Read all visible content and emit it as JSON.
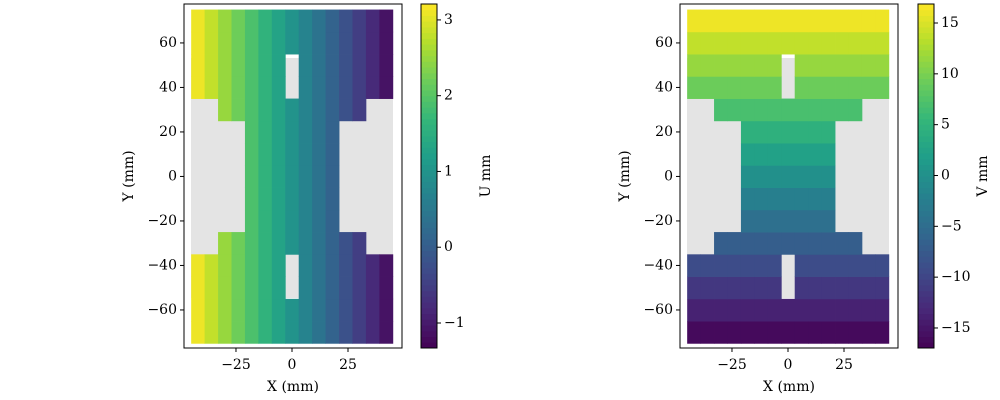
{
  "chart_data": [
    {
      "type": "field",
      "xlabel": "X (mm)",
      "ylabel": "Y (mm)",
      "colorbar_label": "U mm",
      "colormap": "viridis",
      "x": [
        -42,
        -36,
        -30,
        -24,
        -18,
        -12,
        -6,
        0,
        6,
        12,
        18,
        24,
        30,
        36,
        42
      ],
      "y": [
        -70,
        -60,
        -50,
        -40,
        -30,
        -20,
        -10,
        0,
        10,
        20,
        30,
        40,
        50,
        60,
        70
      ],
      "values": [
        [
          3.1,
          2.8,
          2.5,
          2.2,
          1.9,
          1.6,
          1.3,
          1.0,
          0.7,
          0.4,
          0.1,
          -0.2,
          -0.5,
          -0.8,
          -1.1
        ],
        [
          3.1,
          2.8,
          2.5,
          2.2,
          1.9,
          1.6,
          1.3,
          1.0,
          0.7,
          0.4,
          0.1,
          -0.2,
          -0.5,
          -0.8,
          -1.1
        ],
        [
          3.1,
          2.8,
          2.5,
          2.2,
          1.9,
          1.6,
          1.3,
          null,
          0.7,
          0.4,
          0.1,
          -0.2,
          -0.5,
          -0.8,
          -1.1
        ],
        [
          3.1,
          2.8,
          2.5,
          2.2,
          1.9,
          1.6,
          1.3,
          null,
          0.7,
          0.4,
          0.1,
          -0.2,
          -0.5,
          -0.8,
          -1.1
        ],
        [
          null,
          null,
          2.5,
          2.2,
          1.9,
          1.6,
          1.3,
          1.0,
          0.7,
          0.4,
          0.1,
          -0.2,
          -0.5,
          null,
          null
        ],
        [
          null,
          null,
          null,
          null,
          1.9,
          1.6,
          1.3,
          1.0,
          0.7,
          0.4,
          0.1,
          null,
          null,
          null,
          null
        ],
        [
          null,
          null,
          null,
          null,
          1.9,
          1.6,
          1.3,
          1.0,
          0.7,
          0.4,
          0.1,
          null,
          null,
          null,
          null
        ],
        [
          null,
          null,
          null,
          null,
          1.9,
          1.6,
          1.3,
          1.0,
          0.7,
          0.4,
          0.1,
          null,
          null,
          null,
          null
        ],
        [
          null,
          null,
          null,
          null,
          1.9,
          1.6,
          1.3,
          1.0,
          0.7,
          0.4,
          0.1,
          null,
          null,
          null,
          null
        ],
        [
          null,
          null,
          null,
          null,
          1.9,
          1.6,
          1.3,
          1.0,
          0.7,
          0.4,
          0.1,
          null,
          null,
          null,
          null
        ],
        [
          null,
          null,
          2.5,
          2.2,
          1.9,
          1.6,
          1.3,
          1.0,
          0.7,
          0.4,
          0.1,
          -0.2,
          -0.5,
          null,
          null
        ],
        [
          3.1,
          2.8,
          2.5,
          2.2,
          1.9,
          1.6,
          1.3,
          null,
          0.7,
          0.4,
          0.1,
          -0.2,
          -0.5,
          -0.8,
          -1.1
        ],
        [
          3.1,
          2.8,
          2.5,
          2.2,
          1.9,
          1.6,
          1.3,
          null,
          0.7,
          0.4,
          0.1,
          -0.2,
          -0.5,
          -0.8,
          -1.1
        ],
        [
          3.1,
          2.8,
          2.5,
          2.2,
          1.9,
          1.6,
          1.3,
          1.0,
          0.7,
          0.4,
          0.1,
          -0.2,
          -0.5,
          -0.8,
          -1.1
        ],
        [
          3.1,
          2.8,
          2.5,
          2.2,
          1.9,
          1.6,
          1.3,
          1.0,
          0.7,
          0.4,
          0.1,
          -0.2,
          -0.5,
          -0.8,
          -1.1
        ]
      ],
      "xlim": [
        -48.2,
        49.1
      ],
      "ylim": [
        -77.1,
        77.5
      ],
      "xticks": [
        {
          "value": -25,
          "label": "−25"
        },
        0,
        25
      ],
      "yticks": [
        {
          "value": -60,
          "label": "−60"
        },
        {
          "value": -40,
          "label": "−40"
        },
        {
          "value": -20,
          "label": "−20"
        },
        0,
        20,
        40,
        60
      ],
      "clim": [
        -1.33,
        3.21
      ],
      "cticks": [
        {
          "value": -1,
          "label": "−1"
        },
        0,
        1,
        2,
        3
      ]
    },
    {
      "type": "field",
      "xlabel": "X (mm)",
      "ylabel": "Y (mm)",
      "colorbar_label": "V mm",
      "colormap": "viridis",
      "x": [
        -42,
        -36,
        -30,
        -24,
        -18,
        -12,
        -6,
        0,
        6,
        12,
        18,
        24,
        30,
        36,
        42
      ],
      "y": [
        -70,
        -60,
        -50,
        -40,
        -30,
        -20,
        -10,
        0,
        10,
        20,
        30,
        40,
        50,
        60,
        70
      ],
      "values": [
        [
          -16.1,
          -16.1,
          -16.1,
          -16.1,
          -16.1,
          -16.1,
          -16.1,
          -16.1,
          -16.1,
          -16.1,
          -16.1,
          -16.1,
          -16.1,
          -16.1,
          -16.1
        ],
        [
          -13.8,
          -13.8,
          -13.8,
          -13.8,
          -13.8,
          -13.8,
          -13.8,
          -13.8,
          -13.8,
          -13.8,
          -13.8,
          -13.8,
          -13.8,
          -13.8,
          -13.8
        ],
        [
          -11.5,
          -11.5,
          -11.5,
          -11.5,
          -11.5,
          -11.5,
          -11.5,
          null,
          -11.5,
          -11.5,
          -11.5,
          -11.5,
          -11.5,
          -11.5,
          -11.5
        ],
        [
          -9.2,
          -9.2,
          -9.2,
          -9.2,
          -9.2,
          -9.2,
          -9.2,
          null,
          -9.2,
          -9.2,
          -9.2,
          -9.2,
          -9.2,
          -9.2,
          -9.2
        ],
        [
          null,
          null,
          -6.9,
          -6.9,
          -6.9,
          -6.9,
          -6.9,
          -6.9,
          -6.9,
          -6.9,
          -6.9,
          -6.9,
          -6.9,
          null,
          null
        ],
        [
          null,
          null,
          null,
          null,
          -4.6,
          -4.6,
          -4.6,
          -4.6,
          -4.6,
          -4.6,
          -4.6,
          null,
          null,
          null,
          null
        ],
        [
          null,
          null,
          null,
          null,
          -2.3,
          -2.3,
          -2.3,
          -2.3,
          -2.3,
          -2.3,
          -2.3,
          null,
          null,
          null,
          null
        ],
        [
          null,
          null,
          null,
          null,
          0,
          0,
          0,
          0,
          0,
          0,
          0,
          null,
          null,
          null,
          null
        ],
        [
          null,
          null,
          null,
          null,
          2.3,
          2.3,
          2.3,
          2.3,
          2.3,
          2.3,
          2.3,
          null,
          null,
          null,
          null
        ],
        [
          null,
          null,
          null,
          null,
          4.6,
          4.6,
          4.6,
          4.6,
          4.6,
          4.6,
          4.6,
          null,
          null,
          null,
          null
        ],
        [
          null,
          null,
          6.9,
          6.9,
          6.9,
          6.9,
          6.9,
          6.9,
          6.9,
          6.9,
          6.9,
          6.9,
          6.9,
          null,
          null
        ],
        [
          9.2,
          9.2,
          9.2,
          9.2,
          9.2,
          9.2,
          9.2,
          null,
          9.2,
          9.2,
          9.2,
          9.2,
          9.2,
          9.2,
          9.2
        ],
        [
          11.5,
          11.5,
          11.5,
          11.5,
          11.5,
          11.5,
          11.5,
          null,
          11.5,
          11.5,
          11.5,
          11.5,
          11.5,
          11.5,
          11.5
        ],
        [
          13.8,
          13.8,
          13.8,
          13.8,
          13.8,
          13.8,
          13.8,
          13.8,
          13.8,
          13.8,
          13.8,
          13.8,
          13.8,
          13.8,
          13.8
        ],
        [
          16.1,
          16.1,
          16.1,
          16.1,
          16.1,
          16.1,
          16.1,
          16.1,
          16.1,
          16.1,
          16.1,
          16.1,
          16.1,
          16.1,
          16.1
        ]
      ],
      "xlim": [
        -48.2,
        49.1
      ],
      "ylim": [
        -77.1,
        77.5
      ],
      "xticks": [
        {
          "value": -25,
          "label": "−25"
        },
        0,
        25
      ],
      "yticks": [
        {
          "value": -60,
          "label": "−60"
        },
        {
          "value": -40,
          "label": "−40"
        },
        {
          "value": -20,
          "label": "−20"
        },
        0,
        20,
        40,
        60
      ],
      "clim": [
        -16.97,
        16.87
      ],
      "cticks": [
        {
          "value": -15,
          "label": "−15"
        },
        {
          "value": -10,
          "label": "−10"
        },
        {
          "value": -5,
          "label": "−5"
        },
        0,
        5,
        10,
        15
      ]
    }
  ]
}
